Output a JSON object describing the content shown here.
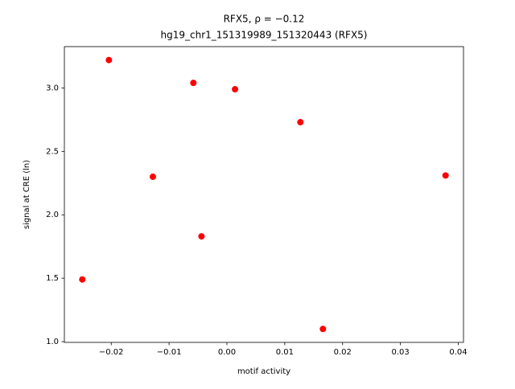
{
  "chart_data": {
    "type": "scatter",
    "title": "RFX5, ρ = −0.12",
    "subtitle": "hg19_chr1_151319989_151320443 (RFX5)",
    "x_label": "motif activity",
    "y_label": "signal at CRE (ln)",
    "color": "#ff0000",
    "x": [
      -0.025,
      -0.0204,
      -0.0128,
      -0.0058,
      -0.0044,
      0.0014,
      0.0127,
      0.0166,
      0.0378
    ],
    "values": [
      1.49,
      3.22,
      2.3,
      3.04,
      1.83,
      2.99,
      2.73,
      1.1,
      2.31
    ],
    "xlim": [
      -0.0281,
      0.0409
    ],
    "ylim": [
      0.994,
      3.326
    ],
    "xticks": [
      {
        "value": -0.02,
        "label": "−0.02"
      },
      {
        "value": -0.01,
        "label": "−0.01"
      },
      {
        "value": 0,
        "label": "0.00"
      },
      {
        "value": 0.01,
        "label": "0.01"
      },
      {
        "value": 0.02,
        "label": "0.02"
      },
      {
        "value": 0.03,
        "label": "0.03"
      },
      {
        "value": 0.04,
        "label": "0.04"
      }
    ],
    "yticks": [
      {
        "value": 1,
        "label": "1.0"
      },
      {
        "value": 1.5,
        "label": "1.5"
      },
      {
        "value": 2,
        "label": "2.0"
      },
      {
        "value": 2.5,
        "label": "2.5"
      },
      {
        "value": 3,
        "label": "3.0"
      }
    ],
    "grid": false
  }
}
